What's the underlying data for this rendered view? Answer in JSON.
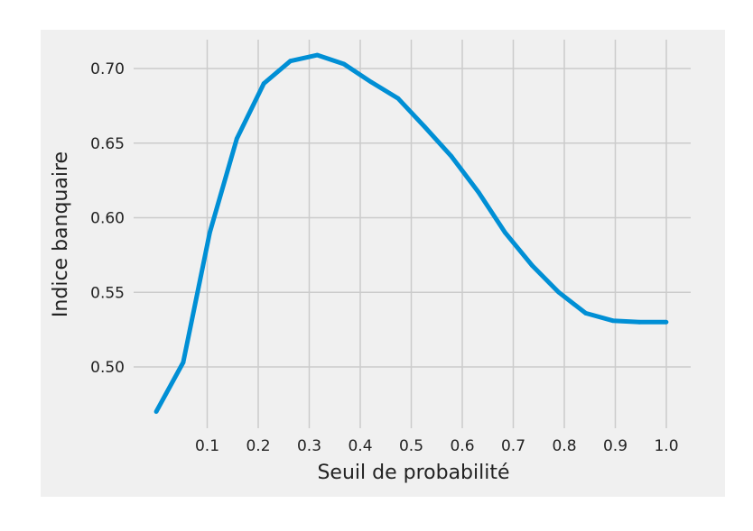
{
  "chart_data": {
    "type": "line",
    "title": "",
    "xlabel": "Seuil de probabilité",
    "ylabel": "Indice banquaire",
    "xlim": [
      0.0,
      1.0
    ],
    "ylim": [
      0.465,
      0.72
    ],
    "xticks": [
      0.1,
      0.2,
      0.3,
      0.4,
      0.5,
      0.6,
      0.7,
      0.8,
      0.9,
      1.0
    ],
    "xtick_labels": [
      "0.1",
      "0.2",
      "0.3",
      "0.4",
      "0.5",
      "0.6",
      "0.7",
      "0.8",
      "0.9",
      "1.0"
    ],
    "yticks": [
      0.5,
      0.55,
      0.6,
      0.65,
      0.7
    ],
    "ytick_labels": [
      "0.50",
      "0.55",
      "0.60",
      "0.65",
      "0.70"
    ],
    "grid": true,
    "legend": "none",
    "colors": {
      "figure_background": "#ffffff",
      "axes_background": "#f0f0f0",
      "grid": "#cbcbcb",
      "line": "#008fd5",
      "text": "#222222"
    },
    "series": [
      {
        "x": [
          0.0,
          0.053,
          0.105,
          0.158,
          0.211,
          0.263,
          0.316,
          0.368,
          0.421,
          0.474,
          0.526,
          0.579,
          0.632,
          0.684,
          0.737,
          0.789,
          0.842,
          0.895,
          0.947,
          1.0
        ],
        "y": [
          0.47,
          0.503,
          0.59,
          0.653,
          0.69,
          0.705,
          0.709,
          0.703,
          0.691,
          0.68,
          0.661,
          0.641,
          0.617,
          0.59,
          0.568,
          0.55,
          0.536,
          0.531,
          0.53,
          0.53
        ]
      }
    ]
  }
}
